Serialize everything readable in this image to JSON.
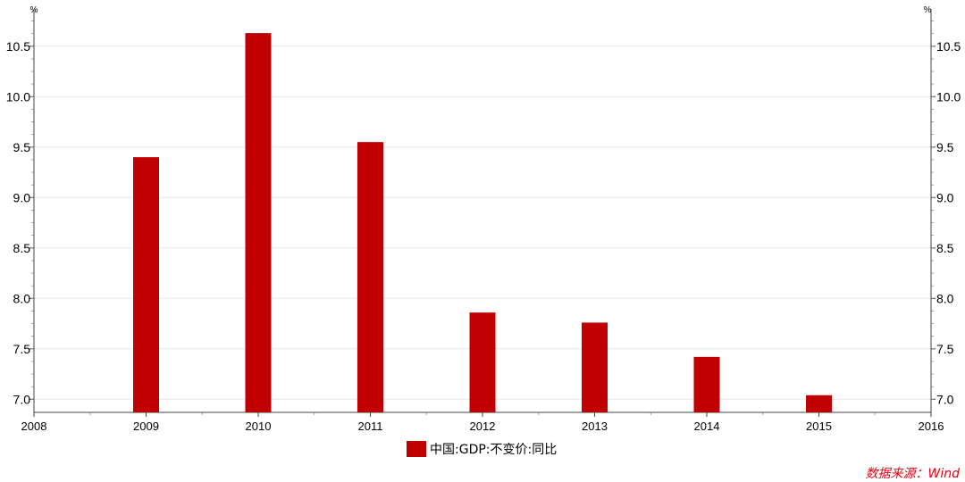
{
  "chart_data": {
    "type": "bar",
    "unit_left": "%",
    "unit_right": "%",
    "x_ticks": [
      "2008",
      "2009",
      "2010",
      "2011",
      "2012",
      "2013",
      "2014",
      "2015",
      "2016"
    ],
    "categories": [
      "2009",
      "2010",
      "2011",
      "2012",
      "2013",
      "2014",
      "2015"
    ],
    "series": [
      {
        "name": "中国:GDP:不变价:同比",
        "color": "#c00000",
        "values": [
          9.4,
          10.63,
          9.55,
          7.86,
          7.76,
          7.42,
          7.04
        ]
      }
    ],
    "y_ticks": [
      "7.0",
      "7.5",
      "8.0",
      "8.5",
      "9.0",
      "9.5",
      "10.0",
      "10.5"
    ],
    "ylim": [
      6.87,
      10.87
    ],
    "grid": true,
    "legend_position": "bottom"
  },
  "source": "数据来源：Wind"
}
